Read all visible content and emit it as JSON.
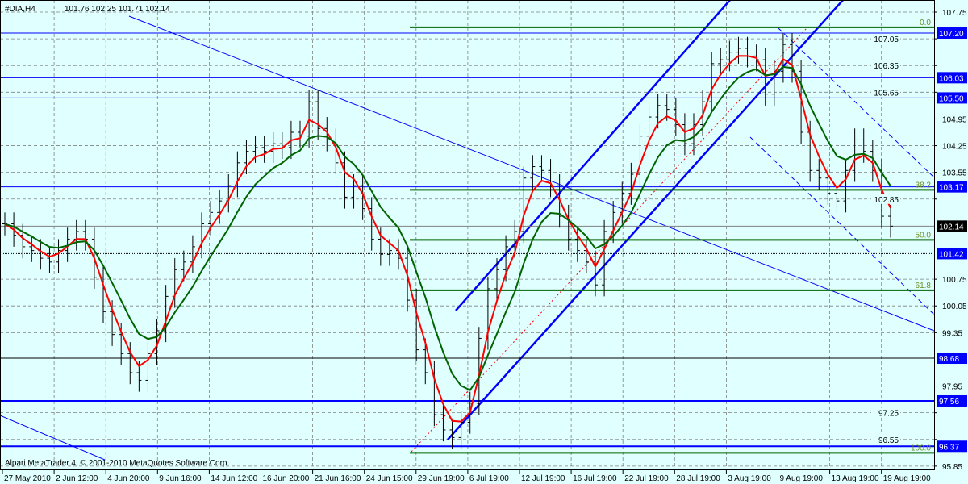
{
  "header": {
    "symbol": "#DIA,H4",
    "ohlc": "101.76 102.25 101.71 102.14"
  },
  "footer": {
    "copyright": "Alpari MetaTrader 4, © 2001-2010 MetaQuotes Software Corp."
  },
  "colors": {
    "background": "#e0ffff",
    "bars": "#000000",
    "fast_ma": "#ff0000",
    "slow_ma": "#006400",
    "levels": "#0000ff",
    "fibo": "#006400",
    "grid": "#808080"
  },
  "chart_data": {
    "type": "ohlc-bar",
    "timeframe": "H4",
    "ylim": [
      95.85,
      107.75
    ],
    "grid": true,
    "y_ticks": [
      "107.75",
      "107.05",
      "106.35",
      "105.65",
      "104.95",
      "104.25",
      "103.55",
      "102.85",
      "100.75",
      "100.05",
      "99.35",
      "97.95",
      "97.25",
      "96.55",
      "95.85"
    ],
    "x_ticks": [
      "27 May 2010",
      "2 Jun 12:00",
      "4 Jun 20:00",
      "9 Jun 16:00",
      "14 Jun 12:00",
      "16 Jun 20:00",
      "21 Jun 16:00",
      "24 Jun 15:00",
      "29 Jun 19:00",
      "6 Jul 19:00",
      "12 Jul 19:00",
      "16 Jul 19:00",
      "22 Jul 19:00",
      "28 Jul 19:00",
      "3 Aug 19:00",
      "9 Aug 19:00",
      "13 Aug 19:00",
      "19 Aug 19:00"
    ],
    "closes": [
      102.2,
      101.9,
      101.6,
      101.5,
      101.3,
      101.2,
      101.5,
      101.8,
      102.0,
      101.8,
      100.8,
      99.9,
      99.3,
      98.8,
      98.3,
      98.1,
      98.8,
      99.4,
      100.3,
      101.0,
      101.2,
      101.6,
      102.2,
      102.5,
      102.8,
      103.2,
      103.8,
      104.1,
      104.2,
      104.1,
      104.3,
      104.2,
      104.6,
      104.5,
      105.4,
      104.7,
      104.4,
      103.8,
      102.9,
      103.2,
      102.6,
      101.8,
      101.4,
      101.5,
      101.3,
      100.2,
      98.9,
      98.3,
      97.2,
      96.8,
      96.6,
      97.0,
      97.5,
      99.2,
      100.5,
      101.0,
      101.6,
      102.0,
      103.4,
      103.7,
      103.6,
      103.2,
      102.4,
      101.8,
      101.5,
      101.2,
      100.6,
      102.0,
      102.5,
      103.0,
      103.5,
      104.5,
      105.0,
      105.3,
      105.2,
      104.8,
      104.3,
      104.8,
      105.4,
      106.4,
      106.5,
      106.7,
      106.8,
      106.6,
      106.5,
      105.6,
      106.2,
      106.9,
      106.2,
      104.6,
      103.6,
      103.4,
      103.0,
      102.8,
      103.6,
      104.4,
      104.1,
      103.6,
      102.4,
      102.14
    ],
    "price_levels": [
      {
        "label": "107.20",
        "value": 107.2,
        "style": "blue"
      },
      {
        "label": "106.03",
        "value": 106.03,
        "style": "blue"
      },
      {
        "label": "105.50",
        "value": 105.5,
        "style": "blue"
      },
      {
        "label": "103.17",
        "value": 103.17,
        "style": "blue"
      },
      {
        "label": "102.14",
        "value": 102.14,
        "style": "current"
      },
      {
        "label": "101.42",
        "value": 101.42,
        "style": "black"
      },
      {
        "label": "98.68",
        "value": 98.68,
        "style": "black"
      },
      {
        "label": "97.56",
        "value": 97.56,
        "style": "blue-thick"
      },
      {
        "label": "96.37",
        "value": 96.37,
        "style": "blue-thick"
      }
    ],
    "fibonacci": [
      {
        "label": "0.0",
        "value": 107.35
      },
      {
        "label": "38.2",
        "value": 103.09
      },
      {
        "label": "50.0",
        "value": 101.78
      },
      {
        "label": "61.8",
        "value": 100.46
      },
      {
        "label": "100.0",
        "value": 96.2
      }
    ]
  }
}
